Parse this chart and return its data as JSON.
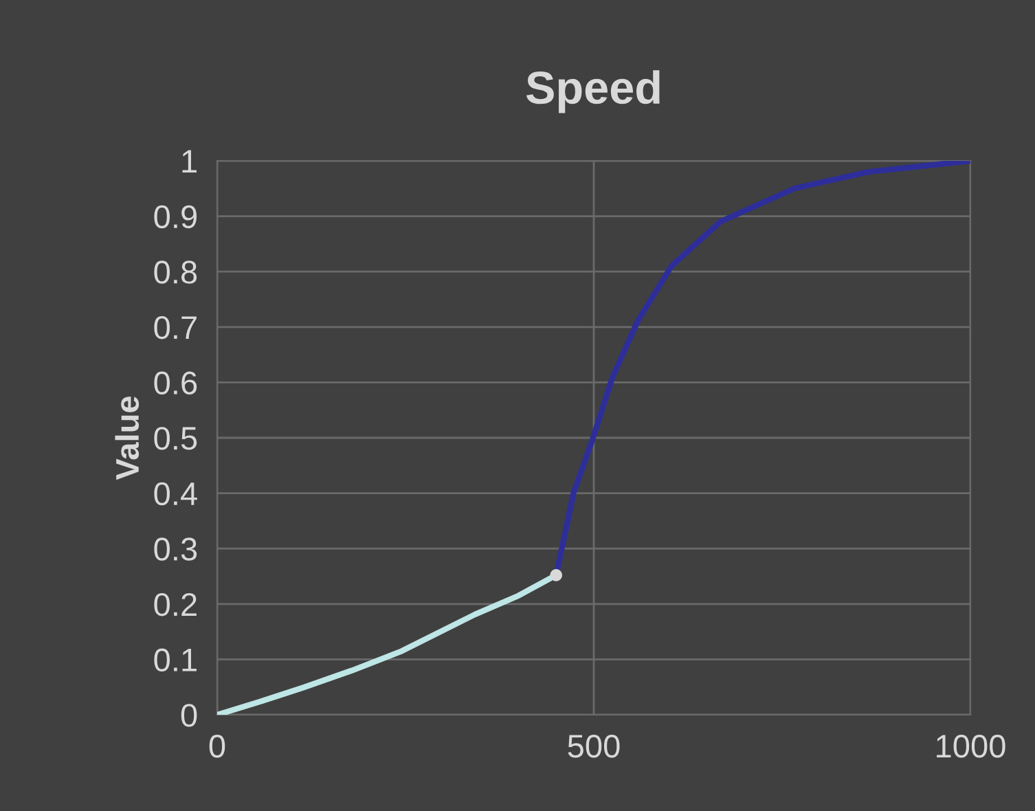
{
  "chart_data": {
    "type": "line",
    "title": "Speed",
    "ylabel": "Value",
    "series": [
      {
        "x": [
          0,
          60,
          114,
          179,
          245,
          342,
          400,
          450
        ],
        "values": [
          0,
          0.025,
          0.049,
          0.08,
          0.115,
          0.181,
          0.215,
          0.252
        ],
        "color": "#bfe6e6"
      },
      {
        "x": [
          450,
          473,
          499,
          525,
          558,
          603,
          668,
          766,
          864,
          1000
        ],
        "values": [
          0.252,
          0.4,
          0.5,
          0.61,
          0.71,
          0.81,
          0.89,
          0.95,
          0.98,
          1.0
        ],
        "color": "#2e2e9a"
      },
      {
        "type": "scatter",
        "x": [
          450
        ],
        "values": [
          0.252
        ],
        "color": "#d9d9d9"
      }
    ],
    "xlim": [
      0,
      1000
    ],
    "xticks": [
      0,
      500,
      1000
    ],
    "ylim": [
      0,
      1
    ],
    "yticks": [
      0,
      0.1,
      0.2,
      0.3,
      0.4,
      0.5,
      0.6,
      0.7,
      0.8,
      0.9,
      1
    ],
    "grid": true
  }
}
